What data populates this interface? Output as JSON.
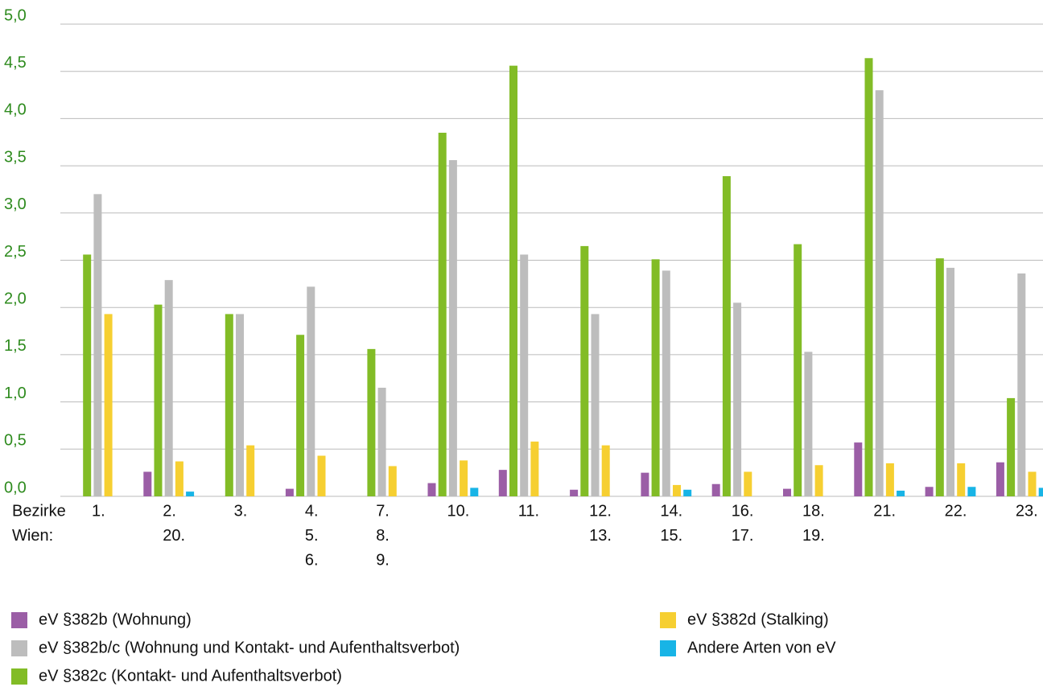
{
  "chart_data": {
    "type": "bar",
    "x_label": [
      "Bezirke",
      "Wien:"
    ],
    "categories": [
      [
        "1."
      ],
      [
        "2.",
        "20."
      ],
      [
        "3."
      ],
      [
        "4.",
        "5.",
        "6."
      ],
      [
        "7.",
        "8.",
        "9."
      ],
      [
        "10."
      ],
      [
        "11."
      ],
      [
        "12.",
        "13."
      ],
      [
        "14.",
        "15."
      ],
      [
        "16.",
        "17."
      ],
      [
        "18.",
        "19."
      ],
      [
        "21."
      ],
      [
        "22."
      ],
      [
        "23."
      ]
    ],
    "series": [
      {
        "name": "eV §382b (Wohnung)",
        "color": "#9b5ea6",
        "values": [
          0,
          0.26,
          0,
          0.08,
          0,
          0.14,
          0.28,
          0.07,
          0.25,
          0.13,
          0.08,
          0.57,
          0.1,
          0.36
        ]
      },
      {
        "name": "eV §382b/c (Wohnung und Kontakt- und Aufenthaltsverbot)",
        "color": "#bdbdbd",
        "values": [
          3.2,
          2.29,
          1.93,
          2.22,
          1.15,
          3.56,
          2.56,
          1.93,
          2.39,
          2.05,
          1.53,
          4.3,
          2.42,
          2.36
        ]
      },
      {
        "name": "eV §382c (Kontakt- und Aufenthaltsverbot)",
        "color": "#82bc26",
        "values": [
          2.56,
          2.03,
          1.93,
          1.71,
          1.56,
          3.85,
          4.56,
          2.65,
          2.51,
          3.39,
          2.67,
          4.64,
          2.52,
          1.04
        ]
      },
      {
        "name": "eV §382d (Stalking)",
        "color": "#f6cf31",
        "values": [
          1.93,
          0.37,
          0.54,
          0.43,
          0.32,
          0.38,
          0.58,
          0.54,
          0.12,
          0.26,
          0.33,
          0.35,
          0.35,
          0.26
        ]
      },
      {
        "name": "Andere Arten von eV",
        "color": "#18b4e6",
        "values": [
          0,
          0.05,
          0,
          0,
          0,
          0.09,
          0,
          0,
          0.07,
          0,
          0,
          0.06,
          0.1,
          0.09
        ]
      }
    ],
    "ylim": [
      0,
      5
    ],
    "yticks": [
      {
        "value": 0,
        "label": "0,0"
      },
      {
        "value": 0.5,
        "label": "0,5"
      },
      {
        "value": 1,
        "label": "1,0"
      },
      {
        "value": 1.5,
        "label": "1,5"
      },
      {
        "value": 2,
        "label": "2,0"
      },
      {
        "value": 2.5,
        "label": "2,5"
      },
      {
        "value": 3,
        "label": "3,0"
      },
      {
        "value": 3.5,
        "label": "3,5"
      },
      {
        "value": 4,
        "label": "4,0"
      },
      {
        "value": 4.5,
        "label": "4,5"
      },
      {
        "value": 5,
        "label": "5,0"
      }
    ],
    "grid": true
  }
}
